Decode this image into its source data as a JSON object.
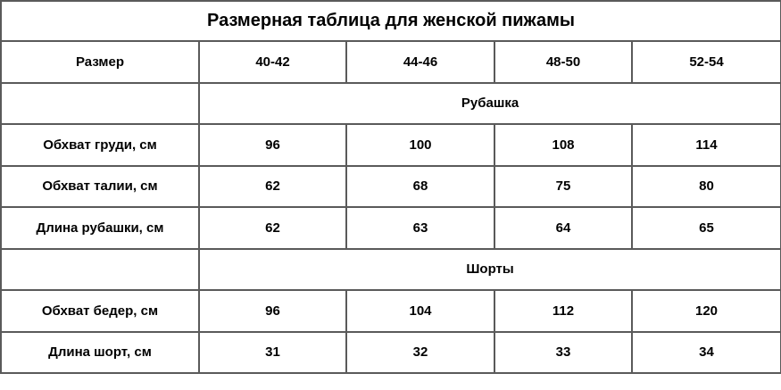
{
  "title": "Размерная таблица для женской пижамы",
  "header": {
    "label": "Размер",
    "sizes": [
      "40-42",
      "44-46",
      "48-50",
      "52-54"
    ]
  },
  "sections": [
    {
      "name": "Рубашка",
      "rows": [
        {
          "label": "Обхват груди, см",
          "values": [
            "96",
            "100",
            "108",
            "114"
          ]
        },
        {
          "label": "Обхват талии, см",
          "values": [
            "62",
            "68",
            "75",
            "80"
          ]
        },
        {
          "label": "Длина рубашки, см",
          "values": [
            "62",
            "63",
            "64",
            "65"
          ]
        }
      ]
    },
    {
      "name": "Шорты",
      "rows": [
        {
          "label": "Обхват бедер, см",
          "values": [
            "96",
            "104",
            "112",
            "120"
          ]
        },
        {
          "label": "Длина шорт, см",
          "values": [
            "31",
            "32",
            "33",
            "34"
          ]
        }
      ]
    }
  ]
}
